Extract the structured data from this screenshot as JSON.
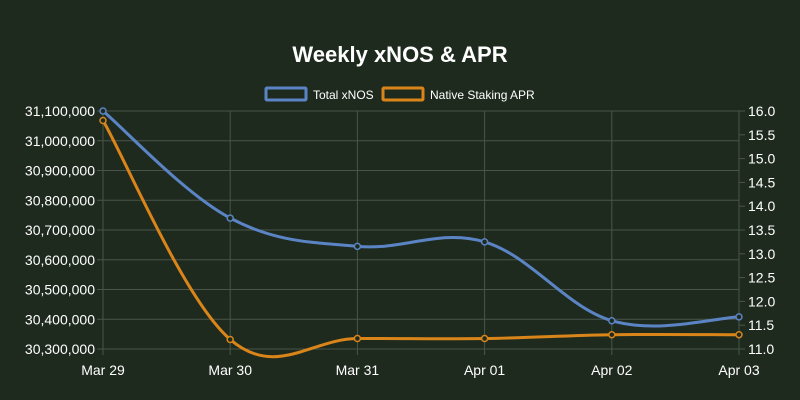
{
  "chart_data": {
    "type": "line",
    "title": "Weekly xNOS & APR",
    "categories": [
      "Mar 29",
      "Mar 30",
      "Mar 31",
      "Apr 01",
      "Apr 02",
      "Apr 03"
    ],
    "series": [
      {
        "name": "Total xNOS",
        "axis": "left",
        "color": "#5b84c4",
        "values": [
          31100000,
          30740000,
          30645000,
          30660000,
          30395000,
          30408000
        ]
      },
      {
        "name": "Native Staking APR",
        "axis": "right",
        "color": "#d9851a",
        "values": [
          15.8,
          11.2,
          11.22,
          11.22,
          11.3,
          11.3
        ]
      }
    ],
    "y_left": {
      "min": 30300000,
      "max": 31100000,
      "ticks": [
        "31,100,000",
        "31,000,000",
        "30,900,000",
        "30,800,000",
        "30,700,000",
        "30,600,000",
        "30,500,000",
        "30,400,000",
        "30,300,000"
      ],
      "tick_values": [
        31100000,
        31000000,
        30900000,
        30800000,
        30700000,
        30600000,
        30500000,
        30400000,
        30300000
      ]
    },
    "y_right": {
      "min": 11.0,
      "max": 16.0,
      "ticks": [
        "16.0",
        "15.5",
        "15.0",
        "14.5",
        "14.0",
        "13.5",
        "13.0",
        "12.5",
        "12.0",
        "11.5",
        "11.0"
      ],
      "tick_values": [
        16.0,
        15.5,
        15.0,
        14.5,
        14.0,
        13.5,
        13.0,
        12.5,
        12.0,
        11.5,
        11.0
      ]
    },
    "legend": "top-center",
    "grid": true
  }
}
